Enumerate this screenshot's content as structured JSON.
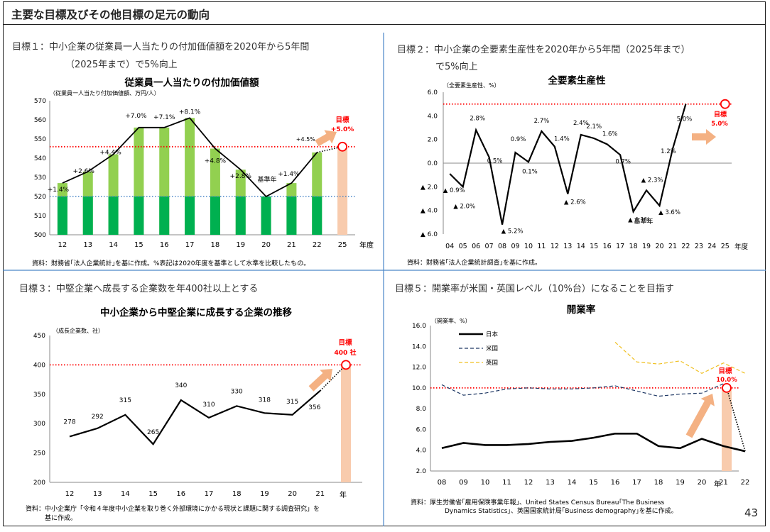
{
  "page": {
    "title": "主要な目標及びその他目標の足元の動向",
    "number": "43"
  },
  "panels": [
    {
      "goal": [
        "目標１：中小企業の従業員一人当たりの付加価値額を2020年から5年間",
        "（2025年まで）で5%向上"
      ],
      "source": [
        "資料：財務省｢法人企業統計｣を基に作成。%表記は2020年度を基準として水準を比較したもの。"
      ],
      "target_label": [
        "目標",
        "+5.0%"
      ],
      "chart_data": {
        "type": "bar",
        "title": "従業員一人当たりの付加価値額",
        "ylabel": "（従業員一人当たり付加価値額、万円/人）",
        "xlabel": "年度",
        "ylim": [
          500,
          570
        ],
        "yticks": [
          "500",
          "510",
          "520",
          "530",
          "540",
          "550",
          "560",
          "570"
        ],
        "categories": [
          "12",
          "13",
          "14",
          "15",
          "16",
          "17",
          "18",
          "19",
          "20",
          "21",
          "22",
          "25"
        ],
        "values": [
          527,
          533,
          542,
          556,
          556,
          561,
          545,
          534,
          520,
          527,
          543,
          546
        ],
        "target_value": 546,
        "baseline_value": 520,
        "baseline_label": "基準年",
        "labels": [
          "+1.4%",
          "+2.6%",
          "+4.4%",
          "+7.0%",
          "+7.1%",
          "+8.1%",
          "+4.8%",
          "+2.8%",
          "",
          "+1.4%",
          "+4.5%",
          ""
        ],
        "colors": {
          "bar_upper": "#92d050",
          "bar_lower": "#00b050",
          "target_bar": "#f8cbad",
          "line": "#000000",
          "target_line": "#ff0000",
          "baseline_line": "#4a86c8"
        }
      }
    },
    {
      "goal": [
        "目標２：中小企業の全要素生産性を2020年から5年間（2025年まで）",
        "で5%向上"
      ],
      "source": [
        "資料：財務省｢法人企業統計調査｣を基に作成。"
      ],
      "target_label": [
        "目標",
        "5.0%"
      ],
      "chart_data": {
        "type": "line",
        "title": "全要素生産性",
        "ylabel": "（全要素生産性、%）",
        "xlabel": "年度",
        "ylim": [
          -6,
          6
        ],
        "yticks": [
          "▲ 6.0",
          "▲ 4.0",
          "▲ 2.0",
          "0.0",
          "2.0",
          "4.0",
          "6.0"
        ],
        "categories": [
          "04",
          "05",
          "06",
          "07",
          "08",
          "09",
          "10",
          "11",
          "12",
          "13",
          "14",
          "15",
          "16",
          "17",
          "18",
          "19",
          "20",
          "21",
          "22",
          "23",
          "24",
          "25"
        ],
        "values": [
          -0.9,
          -2.0,
          2.8,
          0.5,
          -5.2,
          0.9,
          0.1,
          2.7,
          1.4,
          -2.6,
          2.4,
          2.1,
          1.6,
          0.7,
          -4.1,
          -2.3,
          -3.6,
          1.2,
          5.0,
          null,
          null,
          null
        ],
        "target_value": 5.0,
        "baseline_label": "基準年",
        "labels": [
          "▲ 0.9%",
          "▲ 2.0%",
          "2.8%",
          "0.5%",
          "▲ 5.2%",
          "0.9%",
          "0.1%",
          "2.7%",
          "1.4%",
          "▲ 2.6%",
          "2.4%",
          "2.1%",
          "1.6%",
          "0.7%",
          "▲ 4.1%",
          "▲ 2.3%",
          "▲ 3.6%",
          "1.2%",
          "5.0%"
        ],
        "colors": {
          "line": "#000000",
          "target_line": "#ff0000",
          "arrow": "#f4b183"
        }
      }
    },
    {
      "goal": [
        "目標３：中堅企業へ成長する企業数を年400社以上とする"
      ],
      "source": [
        "資料：中小企業庁「令和４年度中小企業を取り巻く外部環境にかかる現状と課題に関する調査研究」を",
        "　　　基に作成。"
      ],
      "target_label": [
        "目標",
        "400 社"
      ],
      "chart_data": {
        "type": "line",
        "title": "中小企業から中堅企業に成長する企業の推移",
        "ylabel": "（成長企業数、社）",
        "xlabel": "年",
        "ylim": [
          200,
          450
        ],
        "yticks": [
          "200",
          "250",
          "300",
          "350",
          "400",
          "450"
        ],
        "categories": [
          "12",
          "13",
          "14",
          "15",
          "16",
          "17",
          "18",
          "19",
          "20",
          "21"
        ],
        "values": [
          278,
          292,
          315,
          265,
          340,
          310,
          330,
          318,
          315,
          356
        ],
        "target_value": 400,
        "labels": [
          "278",
          "292",
          "315",
          "265",
          "340",
          "310",
          "330",
          "318",
          "315",
          "356"
        ],
        "colors": {
          "line": "#000000",
          "target_line": "#ff0000",
          "target_bar": "#f8cbad"
        }
      }
    },
    {
      "goal": [
        "目標５：開業率が米国・英国レベル（10%台）になることを目指す"
      ],
      "source": [
        "資料：厚生労働省｢雇用保険事業年報｣、United States Census Bureau｢The Business",
        "Dynamics Statistics｣、英国国家統計局｢Business demography｣を基に作成。"
      ],
      "target_label": [
        "目標",
        "10.0%"
      ],
      "chart_data": {
        "type": "line",
        "title": "開業率",
        "ylabel": "（開業率、%）",
        "xlabel": "年",
        "ylim": [
          2,
          16
        ],
        "yticks": [
          "2.0",
          "4.0",
          "6.0",
          "8.0",
          "10.0",
          "12.0",
          "14.0",
          "16.0"
        ],
        "categories": [
          "08",
          "09",
          "10",
          "11",
          "12",
          "13",
          "14",
          "15",
          "16",
          "17",
          "18",
          "19",
          "20",
          "21",
          "22"
        ],
        "target_value": 10.0,
        "series": [
          {
            "name": "日本",
            "values": [
              4.2,
              4.7,
              4.5,
              4.5,
              4.6,
              4.8,
              4.9,
              5.2,
              5.6,
              5.6,
              4.4,
              4.2,
              5.1,
              4.4,
              3.9
            ]
          },
          {
            "name": "米国",
            "values": [
              10.3,
              9.3,
              9.5,
              9.9,
              10.0,
              9.9,
              9.9,
              10.0,
              10.2,
              9.7,
              9.2,
              9.4,
              9.5,
              10.4,
              null
            ]
          },
          {
            "name": "英国",
            "values": [
              null,
              null,
              null,
              null,
              null,
              null,
              null,
              null,
              14.4,
              12.5,
              12.3,
              12.6,
              11.4,
              12.4,
              11.4
            ]
          }
        ],
        "colors": {
          "日本": "#000000",
          "米国": "#1f3864",
          "英国": "#f0c020",
          "target_line": "#ff0000",
          "arrow": "#f4b183",
          "target_bar": "#f8cbad"
        }
      }
    }
  ]
}
